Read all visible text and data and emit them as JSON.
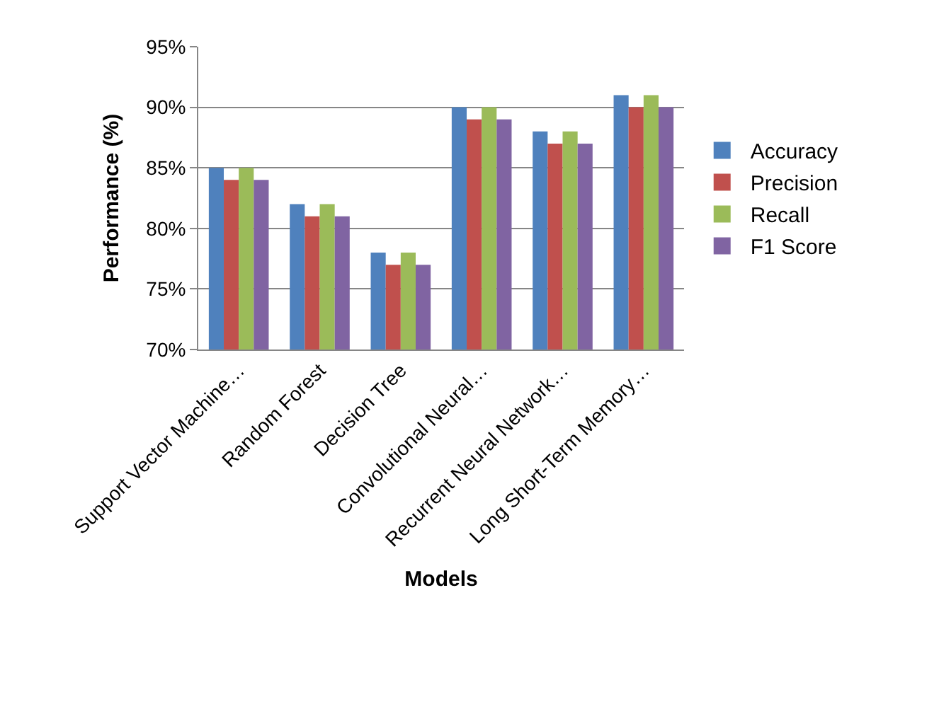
{
  "chart_data": {
    "type": "bar",
    "xlabel": "Models",
    "ylabel": "Performance (%)",
    "categories": [
      "Support Vector Machine…",
      "Random Forest",
      "Decision Tree",
      "Convolutional Neural…",
      "Recurrent Neural Network…",
      "Long Short-Term Memory…"
    ],
    "series": [
      {
        "name": "Accuracy",
        "color": "#4f81bd",
        "values": [
          85,
          82,
          78,
          90,
          88,
          91
        ]
      },
      {
        "name": "Precision",
        "color": "#c0504d",
        "values": [
          84,
          81,
          77,
          89,
          87,
          90
        ]
      },
      {
        "name": "Recall",
        "color": "#9bbb59",
        "values": [
          85,
          82,
          78,
          90,
          88,
          91
        ]
      },
      {
        "name": "F1 Score",
        "color": "#8064a2",
        "values": [
          84,
          81,
          77,
          89,
          87,
          90
        ]
      }
    ],
    "ylim": [
      70,
      95
    ],
    "yticks": [
      {
        "value": 70,
        "label": "70%"
      },
      {
        "value": 75,
        "label": "75%"
      },
      {
        "value": 80,
        "label": "80%"
      },
      {
        "value": 85,
        "label": "85%"
      },
      {
        "value": 90,
        "label": "90%"
      },
      {
        "value": 95,
        "label": "95%"
      }
    ],
    "grid": "y",
    "legend": "right"
  }
}
